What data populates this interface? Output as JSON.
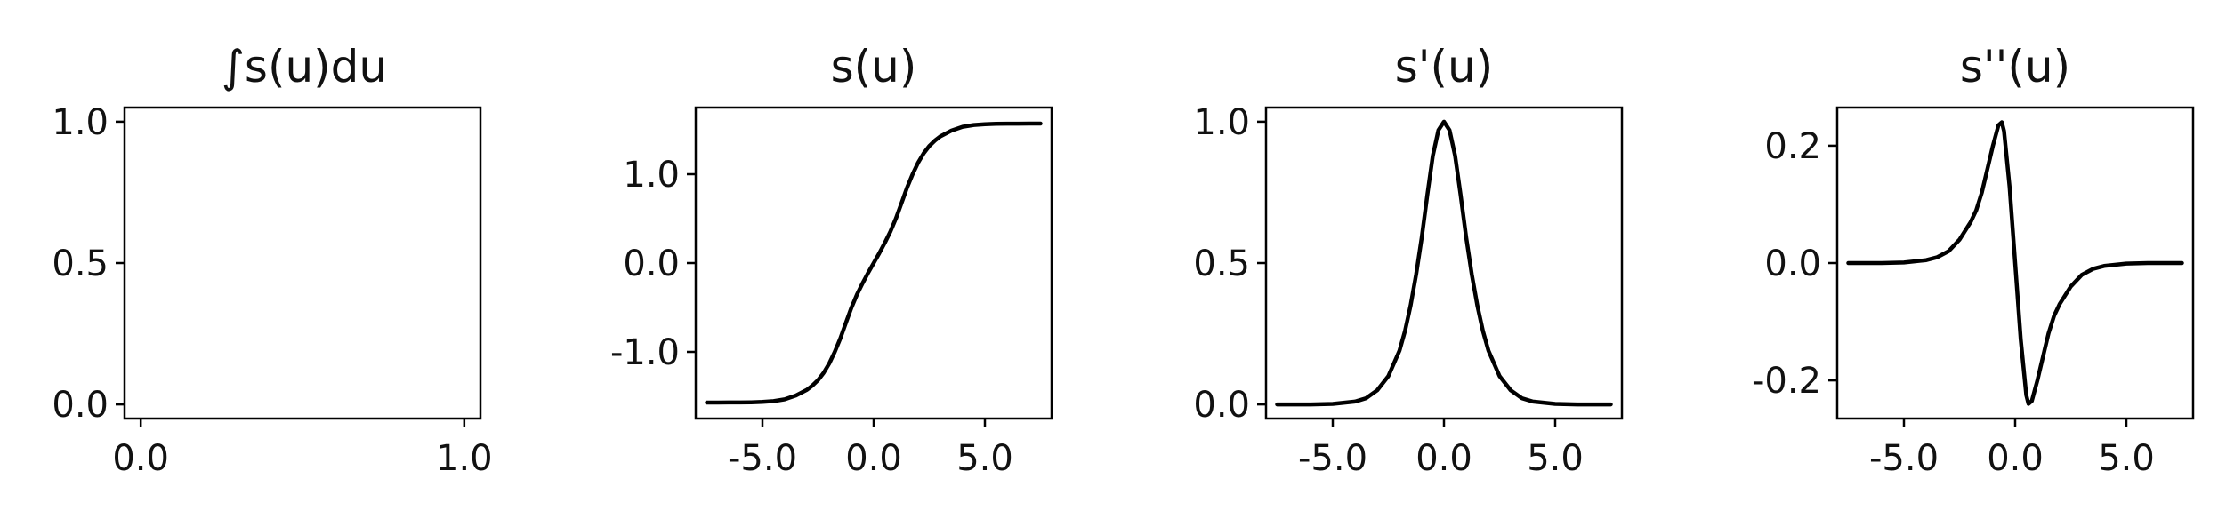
{
  "chart_data": [
    {
      "type": "line",
      "title": "∫s(u)du",
      "xlabel": "",
      "ylabel": "",
      "xlim": [
        -0.05,
        1.05
      ],
      "ylim": [
        -0.05,
        1.05
      ],
      "xticks": [
        0.0,
        1.0
      ],
      "xtick_labels": [
        "0.0",
        "1.0"
      ],
      "yticks": [
        0.0,
        0.5,
        1.0
      ],
      "ytick_labels": [
        "0.0",
        "0.5",
        "1.0"
      ],
      "grid": false,
      "series": [
        {
          "color": "#000000",
          "x": [],
          "y": []
        }
      ]
    },
    {
      "type": "line",
      "title": "s(u)",
      "xlabel": "",
      "ylabel": "",
      "xlim": [
        -8.0,
        8.0
      ],
      "ylim": [
        -1.75,
        1.75
      ],
      "xticks": [
        -5.0,
        0.0,
        5.0
      ],
      "xtick_labels": [
        "-5.0",
        "0.0",
        "5.0"
      ],
      "yticks": [
        -1.0,
        0.0,
        1.0
      ],
      "ytick_labels": [
        "-1.0",
        "0.0",
        "1.0"
      ],
      "grid": false,
      "series": [
        {
          "color": "#000000",
          "x": [
            -7.5,
            -7.0,
            -6.5,
            -6.0,
            -5.5,
            -5.0,
            -4.5,
            -4.0,
            -3.5,
            -3.0,
            -2.75,
            -2.5,
            -2.25,
            -2.0,
            -1.75,
            -1.5,
            -1.25,
            -1.0,
            -0.75,
            -0.5,
            -0.25,
            0.0,
            0.25,
            0.5,
            0.75,
            1.0,
            1.25,
            1.5,
            1.75,
            2.0,
            2.25,
            2.5,
            2.75,
            3.0,
            3.5,
            4.0,
            4.5,
            5.0,
            5.5,
            6.0,
            6.5,
            7.0,
            7.5
          ],
          "y": [
            -1.57,
            -1.57,
            -1.569,
            -1.569,
            -1.567,
            -1.563,
            -1.554,
            -1.534,
            -1.491,
            -1.426,
            -1.378,
            -1.318,
            -1.236,
            -1.131,
            -1.0,
            -0.849,
            -0.674,
            -0.502,
            -0.354,
            -0.228,
            -0.11,
            0.0,
            0.11,
            0.228,
            0.354,
            0.502,
            0.674,
            0.849,
            1.0,
            1.131,
            1.236,
            1.318,
            1.378,
            1.426,
            1.491,
            1.534,
            1.554,
            1.563,
            1.567,
            1.569,
            1.569,
            1.57,
            1.57
          ]
        }
      ]
    },
    {
      "type": "line",
      "title": "s'(u)",
      "xlabel": "",
      "ylabel": "",
      "xlim": [
        -8.0,
        8.0
      ],
      "ylim": [
        -0.05,
        1.05
      ],
      "xticks": [
        -5.0,
        0.0,
        5.0
      ],
      "xtick_labels": [
        "-5.0",
        "0.0",
        "5.0"
      ],
      "yticks": [
        0.0,
        0.5,
        1.0
      ],
      "ytick_labels": [
        "0.0",
        "0.5",
        "1.0"
      ],
      "grid": false,
      "series": [
        {
          "color": "#000000",
          "x": [
            -7.5,
            -6.0,
            -5.0,
            -4.0,
            -3.5,
            -3.0,
            -2.5,
            -2.0,
            -1.75,
            -1.5,
            -1.25,
            -1.0,
            -0.75,
            -0.5,
            -0.25,
            0.0,
            0.25,
            0.5,
            0.75,
            1.0,
            1.25,
            1.5,
            1.75,
            2.0,
            2.5,
            3.0,
            3.5,
            4.0,
            5.0,
            6.0,
            7.5
          ],
          "y": [
            0.0,
            0.0,
            0.002,
            0.01,
            0.022,
            0.05,
            0.1,
            0.19,
            0.26,
            0.35,
            0.46,
            0.59,
            0.74,
            0.88,
            0.97,
            1.0,
            0.97,
            0.88,
            0.74,
            0.59,
            0.46,
            0.35,
            0.26,
            0.19,
            0.1,
            0.05,
            0.022,
            0.01,
            0.002,
            0.0,
            0.0
          ]
        }
      ]
    },
    {
      "type": "line",
      "title": "s''(u)",
      "xlabel": "",
      "ylabel": "",
      "xlim": [
        -8.0,
        8.0
      ],
      "ylim": [
        -0.265,
        0.265
      ],
      "xticks": [
        -5.0,
        0.0,
        5.0
      ],
      "xtick_labels": [
        "-5.0",
        "0.0",
        "5.0"
      ],
      "yticks": [
        -0.2,
        0.0,
        0.2
      ],
      "ytick_labels": [
        "-0.2",
        "0.0",
        "0.2"
      ],
      "grid": false,
      "series": [
        {
          "color": "#000000",
          "x": [
            -7.5,
            -6.0,
            -5.0,
            -4.0,
            -3.5,
            -3.0,
            -2.5,
            -2.0,
            -1.75,
            -1.5,
            -1.25,
            -1.0,
            -0.75,
            -0.6,
            -0.5,
            -0.25,
            0.0,
            0.25,
            0.5,
            0.6,
            0.75,
            1.0,
            1.25,
            1.5,
            1.75,
            2.0,
            2.5,
            3.0,
            3.5,
            4.0,
            5.0,
            6.0,
            7.5
          ],
          "y": [
            0.0,
            0.0,
            0.001,
            0.005,
            0.01,
            0.02,
            0.04,
            0.07,
            0.09,
            0.12,
            0.16,
            0.2,
            0.235,
            0.24,
            0.225,
            0.13,
            0.0,
            -0.13,
            -0.225,
            -0.24,
            -0.235,
            -0.2,
            -0.16,
            -0.12,
            -0.09,
            -0.07,
            -0.04,
            -0.02,
            -0.01,
            -0.005,
            -0.001,
            0.0,
            0.0
          ]
        }
      ]
    }
  ]
}
